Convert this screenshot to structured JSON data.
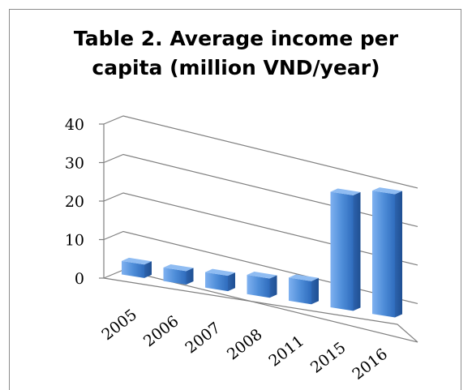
{
  "chart_data": {
    "type": "bar",
    "title_line1": "Table 2. Average income per",
    "title_line2": "capita (million VND/year)",
    "categories": [
      "2005",
      "2006",
      "2007",
      "2008",
      "2011",
      "2015",
      "2016"
    ],
    "values": [
      3.5,
      3.5,
      4,
      5,
      6,
      30,
      32
    ],
    "ylim": [
      0,
      40
    ],
    "yticks": [
      "0",
      "10",
      "20",
      "30",
      "40"
    ],
    "grid": true,
    "legend": "none",
    "bar_color": "#4f81bd"
  }
}
